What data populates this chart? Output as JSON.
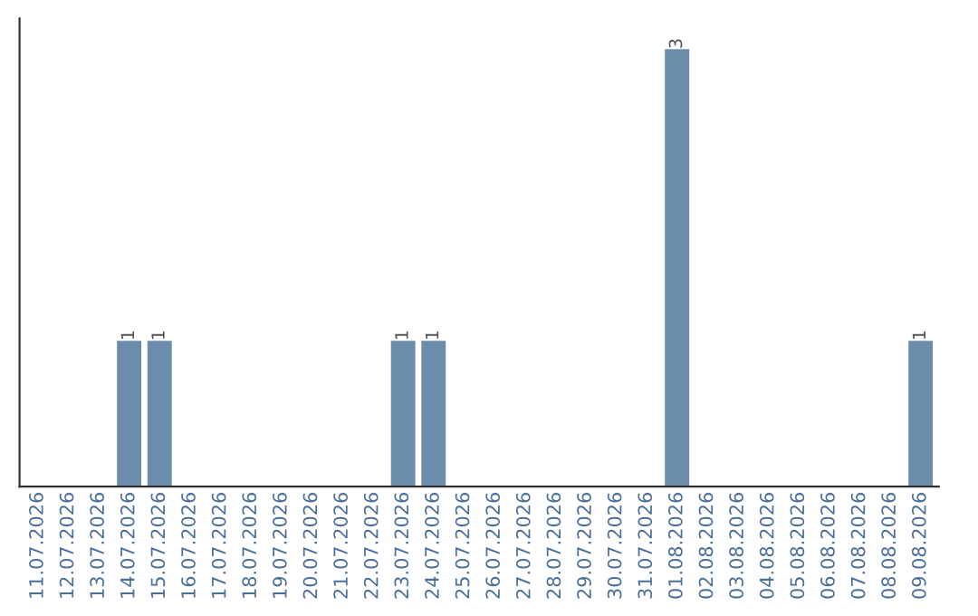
{
  "chart_data": {
    "type": "bar",
    "categories": [
      "11.07.2026",
      "12.07.2026",
      "13.07.2026",
      "14.07.2026",
      "15.07.2026",
      "16.07.2026",
      "17.07.2026",
      "18.07.2026",
      "19.07.2026",
      "20.07.2026",
      "21.07.2026",
      "22.07.2026",
      "23.07.2026",
      "24.07.2026",
      "25.07.2026",
      "26.07.2026",
      "27.07.2026",
      "28.07.2026",
      "29.07.2026",
      "30.07.2026",
      "31.07.2026",
      "01.08.2026",
      "02.08.2026",
      "03.08.2026",
      "04.08.2026",
      "05.08.2026",
      "06.08.2026",
      "07.08.2026",
      "08.08.2026",
      "09.08.2026"
    ],
    "values": [
      0,
      0,
      0,
      1,
      1,
      0,
      0,
      0,
      0,
      0,
      0,
      0,
      1,
      1,
      0,
      0,
      0,
      0,
      0,
      0,
      0,
      3,
      0,
      0,
      0,
      0,
      0,
      0,
      0,
      1
    ],
    "value_labels": [
      null,
      null,
      null,
      "1",
      "1",
      null,
      null,
      null,
      null,
      null,
      null,
      null,
      "1",
      "1",
      null,
      null,
      null,
      null,
      null,
      null,
      null,
      "3",
      null,
      null,
      null,
      null,
      null,
      null,
      null,
      "1"
    ],
    "color": "#6b8cab",
    "tick_labels": "x",
    "grid": false
  }
}
